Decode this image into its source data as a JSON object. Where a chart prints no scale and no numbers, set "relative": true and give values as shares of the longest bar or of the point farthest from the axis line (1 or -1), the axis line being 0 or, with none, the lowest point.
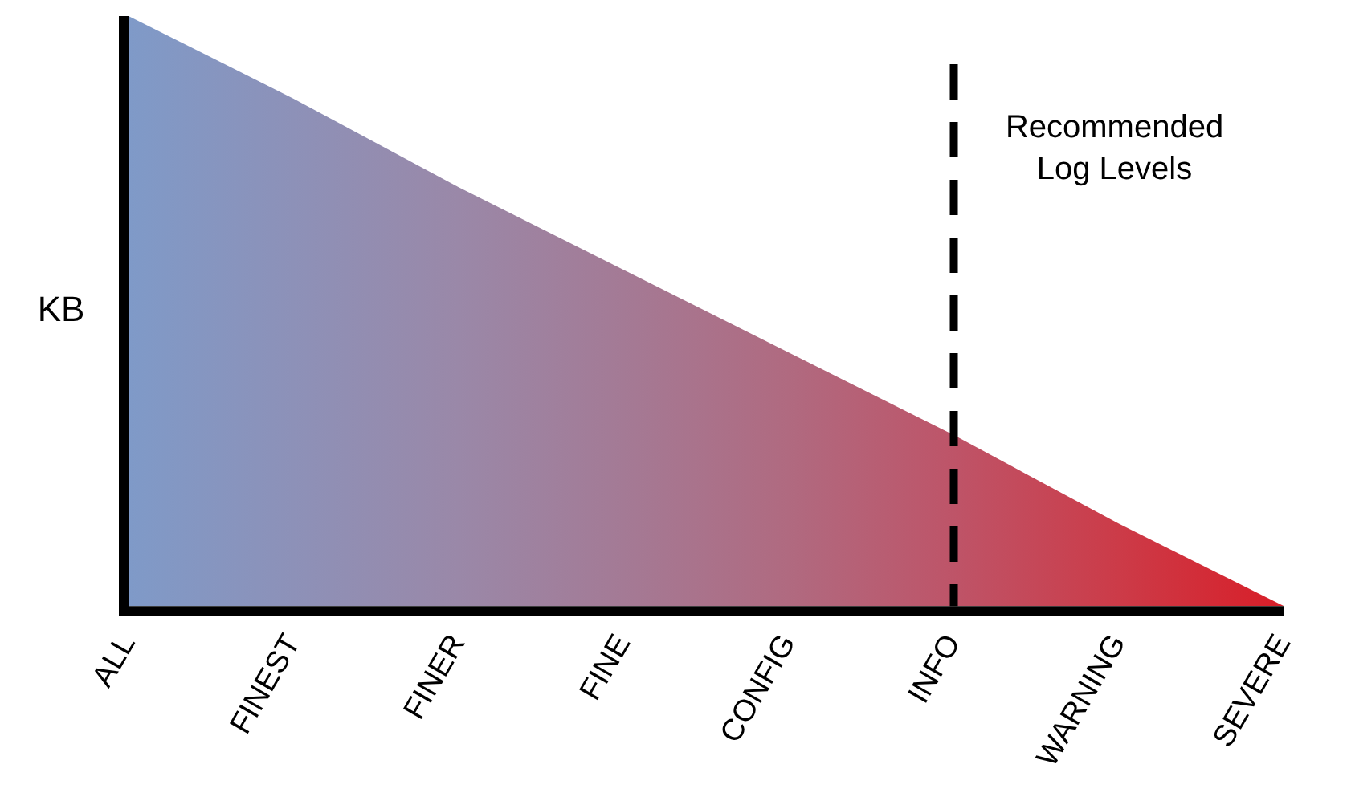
{
  "chart_data": {
    "type": "area",
    "relative": true,
    "ylabel": "KB",
    "categories": [
      "ALL",
      "FINEST",
      "FINER",
      "FINE",
      "CONFIG",
      "INFO",
      "WARNING",
      "SEVERE"
    ],
    "series": [
      {
        "values": [
          1,
          0.86,
          0.71,
          0.57,
          0.43,
          0.29,
          0.14,
          0
        ],
        "colors": [
          "#7f9ac8",
          "#8d91b8",
          "#9a88a8",
          "#a47a95",
          "#b06a80",
          "#be5468",
          "#cc3b48",
          "#d81e28"
        ]
      }
    ],
    "marker": "none",
    "grid": false,
    "legend": false,
    "tick_labels": "x",
    "ref_lines": [
      {
        "axis": "x",
        "value": "INFO",
        "label": "Recommended Log Levels",
        "color": "#000000",
        "line_style": "dashed"
      }
    ]
  }
}
